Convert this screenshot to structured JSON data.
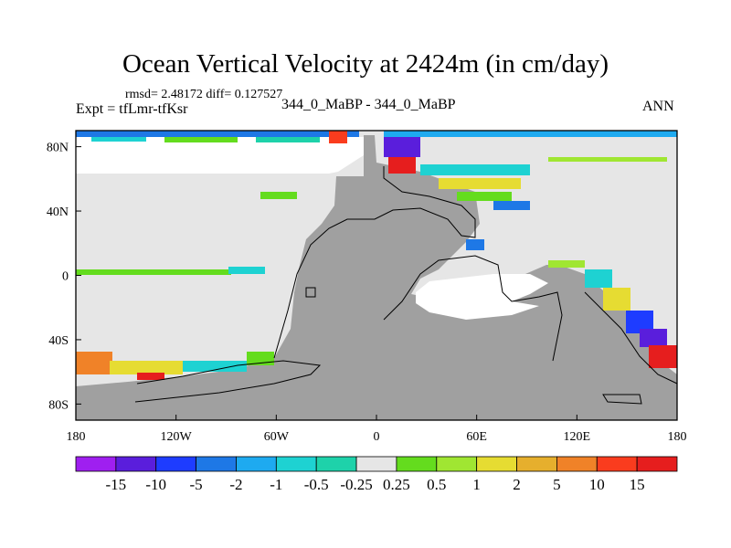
{
  "chart_data": {
    "type": "heatmap",
    "title": "Ocean Vertical Velocity at 2424m (in cm/day)",
    "stats_line": "rmsd= 2.48172  diff= 0.127527",
    "experiment_line": "Expt = tfLmr-tfKsr",
    "case_line": "344_0_MaBP - 344_0_MaBP",
    "season": "ANN",
    "x_ticks": [
      "180",
      "120W",
      "60W",
      "0",
      "60E",
      "120E",
      "180"
    ],
    "x_values": [
      -180,
      -120,
      -60,
      0,
      60,
      120,
      180
    ],
    "y_ticks": [
      "80N",
      "40N",
      "0",
      "40S",
      "80S"
    ],
    "y_values": [
      80,
      40,
      0,
      -40,
      -80
    ],
    "xlim": [
      -180,
      180
    ],
    "ylim": [
      -90,
      90
    ],
    "colorbar": {
      "labels": [
        "-15",
        "-10",
        "-5",
        "-2",
        "-1",
        "-0.5",
        "-0.25",
        "0.25",
        "0.5",
        "1",
        "2",
        "5",
        "10",
        "15"
      ],
      "colors": [
        "#9f1ff0",
        "#5a1edc",
        "#1e3cff",
        "#1e78e6",
        "#1eaaf0",
        "#1ed2d2",
        "#1ed2aa",
        "#e6e6e6",
        "#64dc1e",
        "#a0e632",
        "#e6dc32",
        "#e6af2d",
        "#f08228",
        "#fa3c1e",
        "#e61e1e"
      ]
    }
  }
}
